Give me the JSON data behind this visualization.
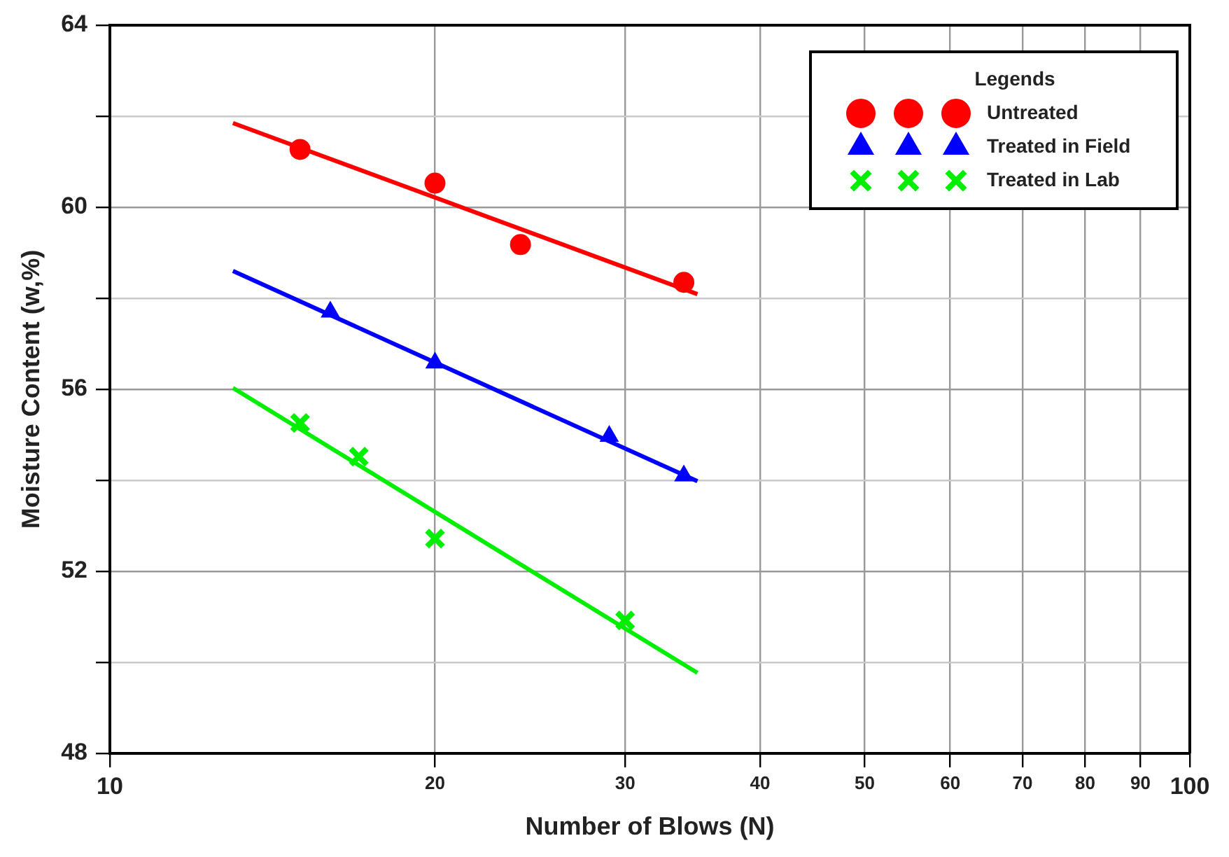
{
  "chart_data": {
    "type": "scatter",
    "xlabel": "Number of Blows (N)",
    "ylabel": "Moisture Content (w,%)",
    "legend_title": "Legends",
    "log": "x",
    "grid": true,
    "legend": "top right",
    "xlim": [
      10,
      100
    ],
    "xticks": [
      10,
      20,
      30,
      40,
      50,
      60,
      70,
      80,
      90,
      100
    ],
    "ylim": [
      48,
      64
    ],
    "yticks": [
      48,
      {
        "value": 50,
        "label": null
      },
      52,
      {
        "value": 54,
        "label": null
      },
      56,
      {
        "value": 58,
        "label": null
      },
      60,
      {
        "value": 62,
        "label": null
      },
      64
    ],
    "series": [
      {
        "name": "Untreated",
        "color": "#ff0000",
        "marker": "circle",
        "x": [
          15,
          20,
          24,
          34
        ],
        "values": [
          61.27,
          60.53,
          59.18,
          58.35
        ]
      },
      {
        "name": "Treated in Field",
        "color": "#0000ff",
        "marker": "triangle",
        "x": [
          16,
          20,
          29,
          34
        ],
        "values": [
          57.7,
          56.58,
          54.97,
          54.1
        ]
      },
      {
        "name": "Treated in Lab",
        "color": "#00ee00",
        "marker": "cross",
        "x": [
          15,
          17,
          20,
          30
        ],
        "values": [
          55.26,
          54.52,
          52.72,
          50.92
        ]
      },
      {
        "type": "line",
        "color": "#ff0000",
        "marker": "none",
        "x": [
          13,
          35
        ],
        "values": [
          61.85,
          58.09
        ]
      },
      {
        "type": "line",
        "color": "#0000ff",
        "marker": "none",
        "x": [
          13,
          35
        ],
        "values": [
          58.6,
          53.98
        ]
      },
      {
        "type": "line",
        "color": "#00ee00",
        "marker": "none",
        "x": [
          13,
          35
        ],
        "values": [
          56.03,
          49.77
        ]
      }
    ]
  }
}
